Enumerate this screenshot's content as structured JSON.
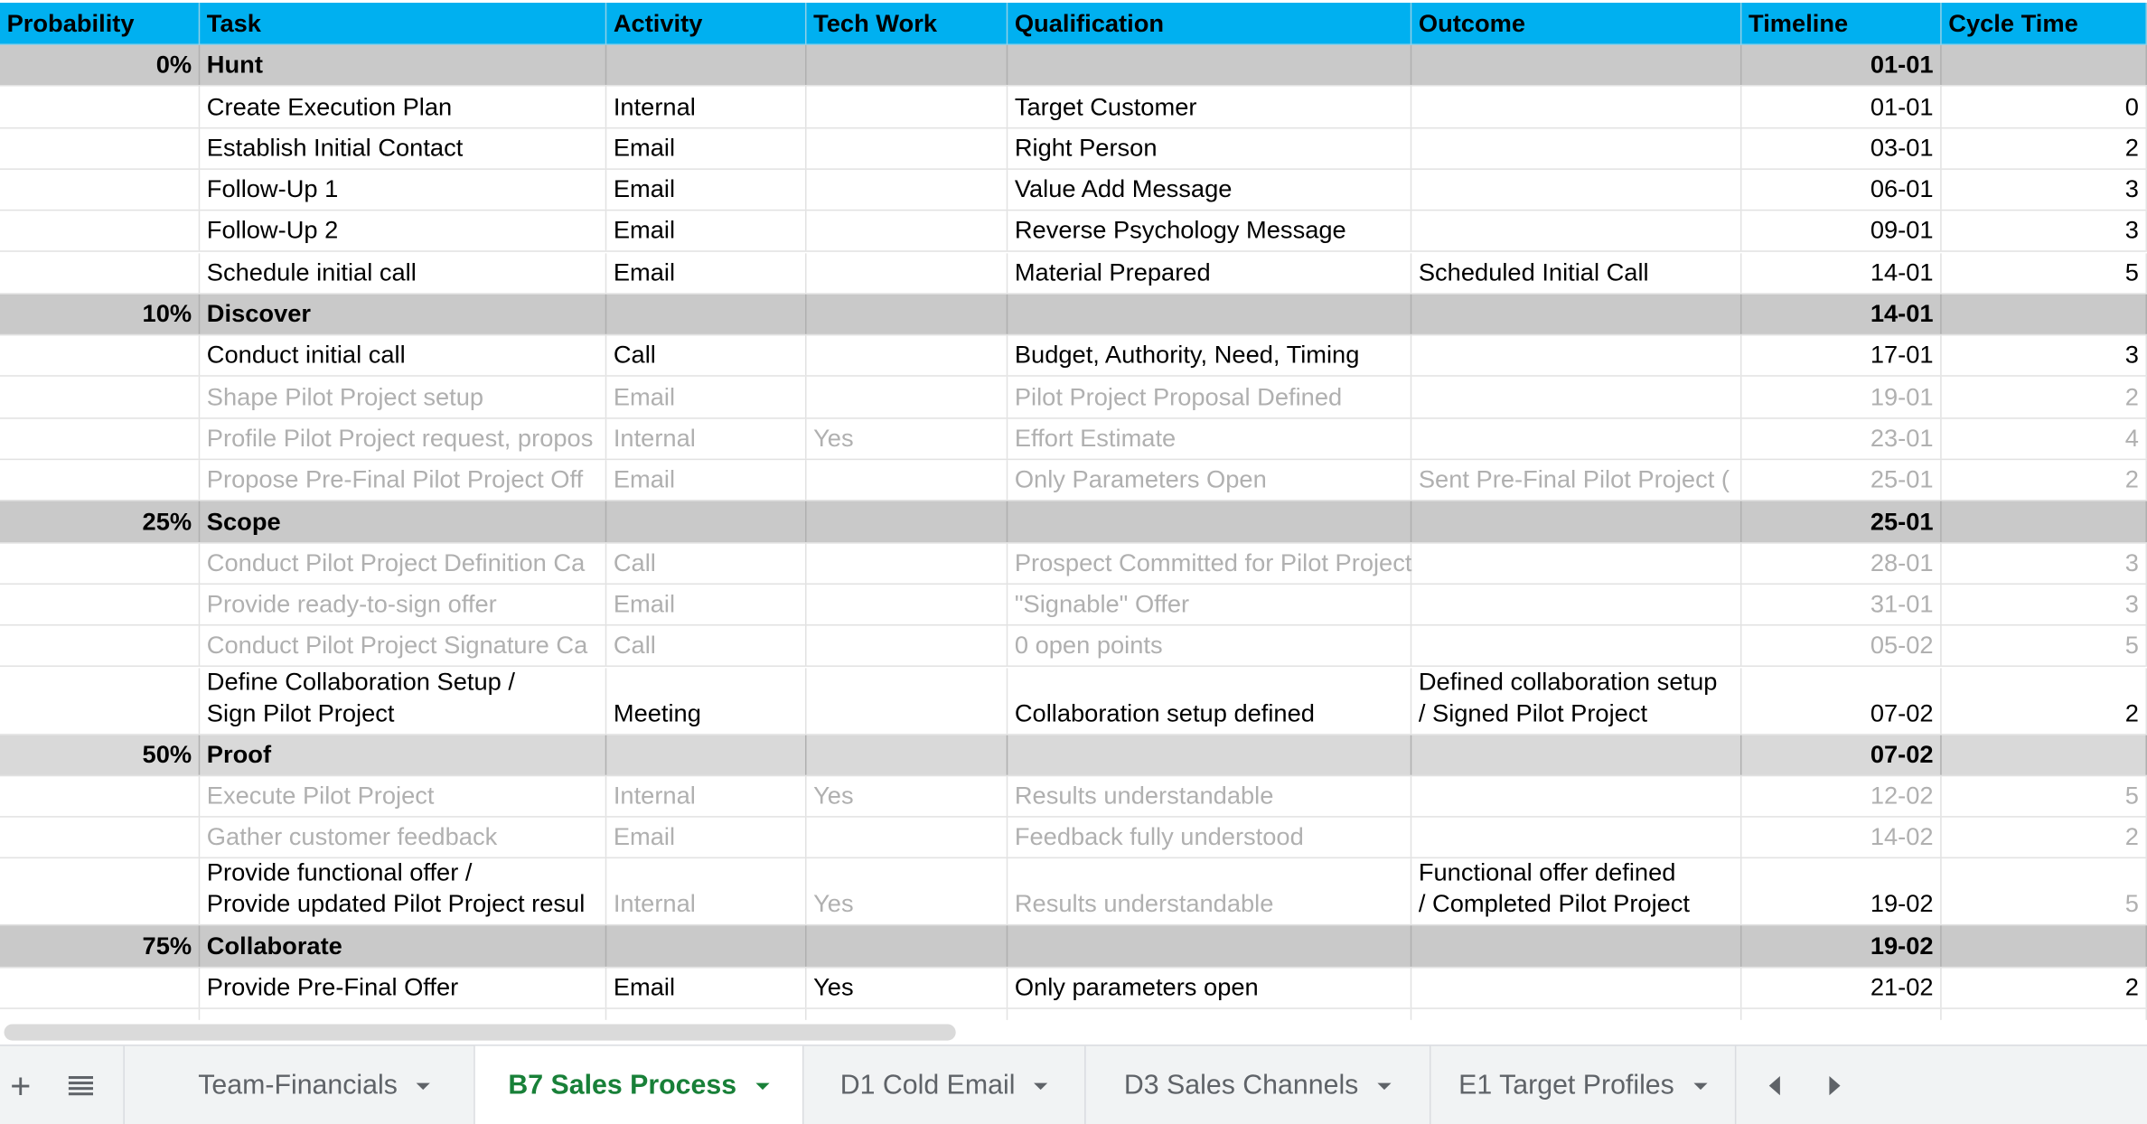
{
  "table": {
    "columns": [
      {
        "key": "probability",
        "label": "Probability"
      },
      {
        "key": "task",
        "label": "Task"
      },
      {
        "key": "activity",
        "label": "Activity"
      },
      {
        "key": "tech_work",
        "label": "Tech Work"
      },
      {
        "key": "qualification",
        "label": "Qualification"
      },
      {
        "key": "outcome",
        "label": "Outcome"
      },
      {
        "key": "timeline",
        "label": "Timeline"
      },
      {
        "key": "cycle_time",
        "label": "Cycle Time"
      }
    ],
    "rows": [
      {
        "section": true,
        "probability": "0%",
        "task": "Hunt",
        "timeline": "01-01"
      },
      {
        "task": "Create Execution Plan",
        "activity": "Internal",
        "qualification": "Target Customer",
        "timeline": "01-01",
        "cycle_time": 0
      },
      {
        "task": "Establish Initial Contact",
        "activity": "Email",
        "qualification": "Right Person",
        "timeline": "03-01",
        "cycle_time": 2
      },
      {
        "task": "Follow-Up 1",
        "activity": "Email",
        "qualification": "Value Add Message",
        "timeline": "06-01",
        "cycle_time": 3
      },
      {
        "task": "Follow-Up 2",
        "activity": "Email",
        "qualification": "Reverse Psychology Message",
        "timeline": "09-01",
        "cycle_time": 3
      },
      {
        "task": "Schedule initial call",
        "activity": "Email",
        "qualification": "Material Prepared",
        "outcome": "Scheduled Initial Call",
        "timeline": "14-01",
        "cycle_time": 5
      },
      {
        "section": true,
        "probability": "10%",
        "task": "Discover",
        "timeline": "14-01"
      },
      {
        "task": "Conduct initial call",
        "activity": "Call",
        "qualification": "Budget, Authority, Need, Timing",
        "timeline": "17-01",
        "cycle_time": 3
      },
      {
        "muted": true,
        "task": "Shape Pilot Project setup",
        "activity": "Email",
        "qualification": "Pilot Project Proposal Defined",
        "timeline": "19-01",
        "cycle_time": 2
      },
      {
        "muted": true,
        "task": "Profile Pilot Project request, propos",
        "activity": "Internal",
        "tech_work": "Yes",
        "qualification": "Effort Estimate",
        "timeline": "23-01",
        "cycle_time": 4
      },
      {
        "muted": true,
        "task": "Propose Pre-Final Pilot Project Off",
        "activity": "Email",
        "qualification": "Only Parameters Open",
        "outcome": "Sent Pre-Final Pilot Project (",
        "timeline": "25-01",
        "cycle_time": 2
      },
      {
        "section": true,
        "probability": "25%",
        "task": "Scope",
        "timeline": "25-01"
      },
      {
        "muted": true,
        "task": "Conduct Pilot Project Definition Ca",
        "activity": "Call",
        "qualification": "Prospect Committed for Pilot Project",
        "timeline": "28-01",
        "cycle_time": 3
      },
      {
        "muted": true,
        "task": "Provide ready-to-sign offer",
        "activity": "Email",
        "qualification": "\"Signable\" Offer",
        "timeline": "31-01",
        "cycle_time": 3
      },
      {
        "muted": true,
        "task": "Conduct Pilot Project Signature Ca",
        "activity": "Call",
        "qualification": "0 open points",
        "timeline": "05-02",
        "cycle_time": 5
      },
      {
        "task": "Define Collaboration Setup /\nSign Pilot Project",
        "activity": "Meeting",
        "qualification": "Collaboration setup defined",
        "outcome": "Defined collaboration setup\n/ Signed Pilot Project",
        "timeline": "07-02",
        "cycle_time": 2
      },
      {
        "section": true,
        "probability": "50%",
        "task": "Proof",
        "timeline": "07-02"
      },
      {
        "muted": true,
        "task": "Execute Pilot Project",
        "activity": "Internal",
        "tech_work": "Yes",
        "qualification": "Results understandable",
        "timeline": "12-02",
        "cycle_time": 5
      },
      {
        "muted": true,
        "task": "Gather customer feedback",
        "activity": "Email",
        "qualification": "Feedback fully understood",
        "timeline": "14-02",
        "cycle_time": 2
      },
      {
        "muted_cells": [
          "activity",
          "tech_work",
          "qualification",
          "cycle_time"
        ],
        "task": "Provide functional offer /\nProvide updated Pilot Project resul",
        "activity": "Internal",
        "tech_work": "Yes",
        "qualification": "Results understandable",
        "outcome": "Functional offer defined\n/ Completed Pilot Project",
        "timeline": "19-02",
        "cycle_time": 5
      },
      {
        "section": true,
        "probability": "75%",
        "task": "Collaborate",
        "timeline": "19-02"
      },
      {
        "task": "Provide Pre-Final Offer",
        "activity": "Email",
        "tech_work": "Yes",
        "qualification": "Only parameters open",
        "timeline": "21-02",
        "cycle_time": 2
      }
    ]
  },
  "sheet_tabs": {
    "tabs": [
      "Team-Financials",
      "B7 Sales Process",
      "D1 Cold Email",
      "D3 Sales Channels",
      "E1 Target Profiles"
    ],
    "active": "B7 Sales Process"
  }
}
